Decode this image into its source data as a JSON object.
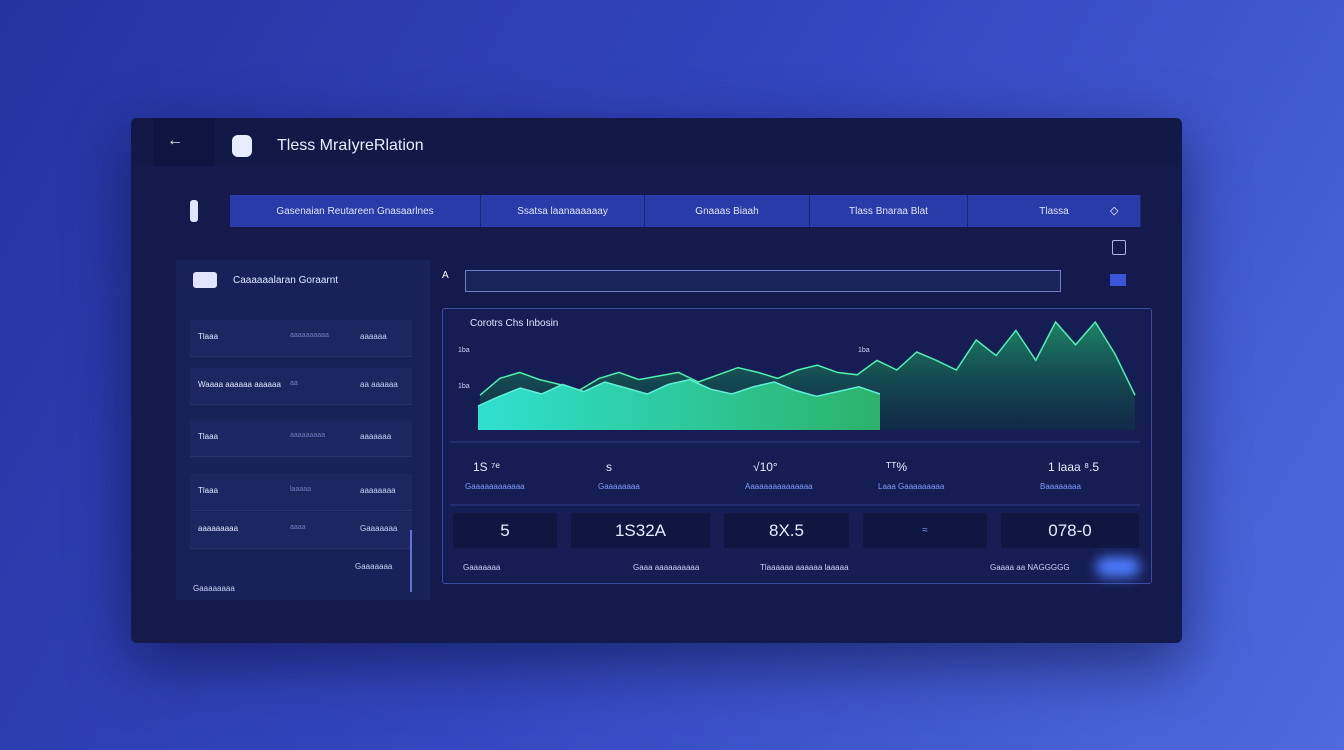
{
  "header": {
    "title": "Tless MraIyreRlation"
  },
  "tabs": [
    "Gasenaian Reutareen  Gnasaarlnes",
    "Ssatsa laanaaaaaay",
    "Gnaaas Biaah",
    "Tlass Bnaraa Blat",
    "Tlassa"
  ],
  "sidebar": {
    "title": "Caaaaaalaran Goraarnt",
    "rows": [
      [
        "Tlaaa",
        "aaaaaaaaaa",
        "aaaaaa"
      ],
      [
        "Waaaa aaaaaa aaaaaa",
        "aa",
        "aa aaaaaa"
      ],
      [
        "Tlaaa",
        "aaaaaaaaa",
        "aaaaaaa"
      ],
      [
        "Tlaaa",
        "laaaaa",
        "aaaaaaaa"
      ],
      [
        "aaaaaaaaa",
        "aaaa",
        "Gaaaaaaa"
      ]
    ],
    "footer": [
      "Gaaaaaaaa",
      "Gaaaaaaa"
    ]
  },
  "chart": {
    "title": "Corotrs Chs Inbosin",
    "ticks": [
      "1ba",
      "1ba",
      "1ba"
    ],
    "series": [
      {
        "name": "back",
        "color": "#1f9e6a",
        "values": [
          29,
          43,
          48,
          42,
          38,
          33,
          43,
          48,
          42,
          45,
          48,
          40,
          46,
          52,
          48,
          43,
          50,
          54,
          48,
          46,
          58,
          50,
          65,
          58,
          50,
          75,
          62,
          83,
          58,
          90,
          71,
          90,
          63,
          29
        ]
      },
      {
        "name": "front",
        "color": "#2fe0c0",
        "values": [
          20,
          28,
          35,
          30,
          38,
          32,
          40,
          35,
          30,
          38,
          42,
          34,
          30,
          36,
          40,
          33,
          28,
          32,
          36,
          30
        ]
      }
    ]
  },
  "stats": [
    {
      "value": "1S ⁷ᵉ",
      "label": "Gaaaaaaaaaaaa"
    },
    {
      "value": "s",
      "label": "Gaaaaaaaa"
    },
    {
      "value": "√10°",
      "label": "Aaaaaaaaaaaaaaa"
    },
    {
      "value": "ᵀᵀ%",
      "label": "Laaa Gaaaaaaaaa"
    },
    {
      "value": "1 laaa  ⁸.5",
      "label": "Baaaaaaaa"
    }
  ],
  "cards": [
    "5",
    "1S32A",
    "8X.5",
    "078-0"
  ],
  "footer": [
    "Gaaaaaaa",
    "Gaaa aaaaaaaaaa",
    "Tlaaaaaa aaaaaa laaaaa",
    "Gaaaa aa NAGGGGG"
  ]
}
